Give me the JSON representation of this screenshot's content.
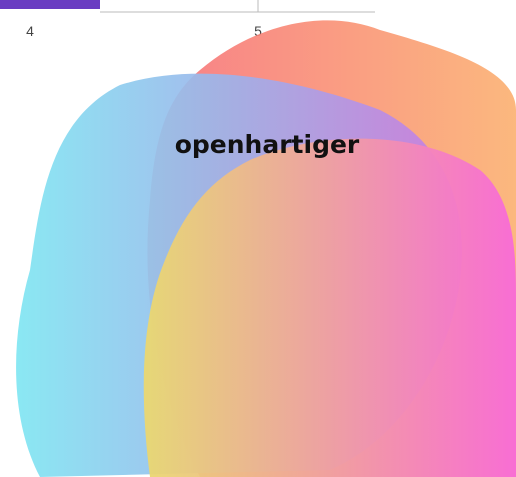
{
  "axis": {
    "tick_labels": [
      "4",
      "5"
    ]
  },
  "brand": {
    "label": "openhartiger"
  }
}
